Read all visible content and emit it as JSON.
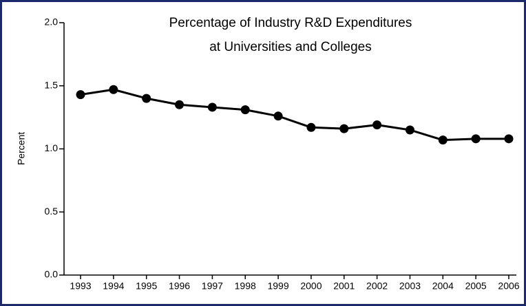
{
  "chart_data": {
    "type": "line",
    "title": [
      "Percentage of Industry R&D Expenditures",
      "at Universities and Colleges"
    ],
    "y_label": "Percent",
    "categories": [
      "1993",
      "1994",
      "1995",
      "1996",
      "1997",
      "1998",
      "1999",
      "2000",
      "2001",
      "2002",
      "2003",
      "2004",
      "2005",
      "2006"
    ],
    "values": [
      1.43,
      1.47,
      1.4,
      1.35,
      1.33,
      1.31,
      1.26,
      1.17,
      1.16,
      1.19,
      1.15,
      1.07,
      1.08,
      1.08
    ],
    "color": "#000000",
    "ylim": [
      0,
      2
    ],
    "yticks": [
      {
        "value": 0,
        "label": "0.0"
      },
      0.5,
      {
        "value": 1,
        "label": "1.0"
      },
      1.5,
      {
        "value": 2,
        "label": "2.0"
      }
    ],
    "grid": false
  }
}
